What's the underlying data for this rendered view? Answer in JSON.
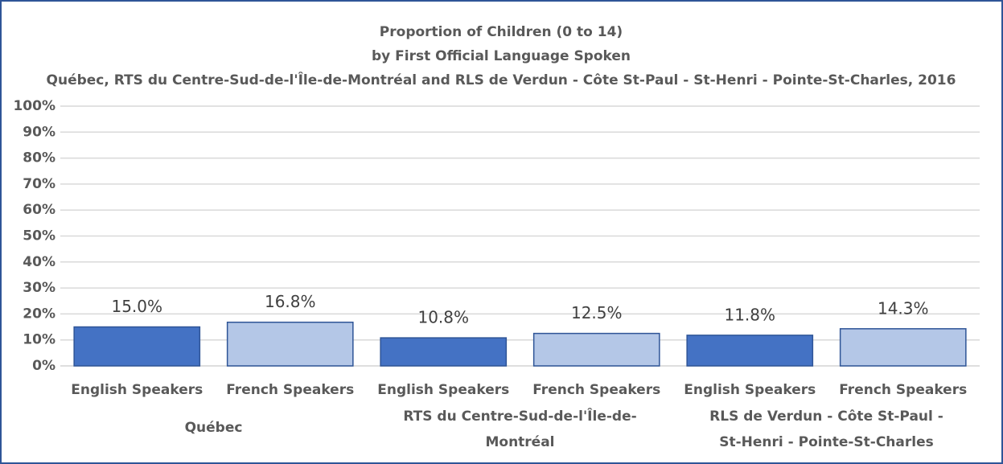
{
  "chart_data": {
    "type": "bar",
    "title": [
      "Proportion of Children (0 to 14)",
      "by First Official Language Spoken",
      "Québec, RTS du Centre-Sud-de-l'Île-de-Montréal and RLS de Verdun - Côte St-Paul - St-Henri - Pointe-St-Charles, 2016"
    ],
    "categories": [
      "English Speakers",
      "French Speakers",
      "English Speakers",
      "French Speakers",
      "English Speakers",
      "French Speakers"
    ],
    "groups": [
      [
        "Québec"
      ],
      [
        "RTS du Centre-Sud-de-l'Île-de-",
        "Montréal"
      ],
      [
        "RLS de Verdun - Côte St-Paul -",
        "St-Henri - Pointe-St-Charles"
      ]
    ],
    "values": [
      15.0,
      16.8,
      10.8,
      12.5,
      11.8,
      14.3
    ],
    "value_labels": [
      "15.0%",
      "16.8%",
      "10.8%",
      "12.5%",
      "11.8%",
      "14.3%"
    ],
    "colors": [
      "#4472c4",
      "#b4c7e7",
      "#4472c4",
      "#b4c7e7",
      "#4472c4",
      "#b4c7e7"
    ],
    "ylim": [
      0,
      100
    ],
    "yticks": [
      {
        "value": 0,
        "label": "0%"
      },
      {
        "value": 10,
        "label": "10%"
      },
      {
        "value": 20,
        "label": "20%"
      },
      {
        "value": 30,
        "label": "30%"
      },
      {
        "value": 40,
        "label": "40%"
      },
      {
        "value": 50,
        "label": "50%"
      },
      {
        "value": 60,
        "label": "60%"
      },
      {
        "value": 70,
        "label": "70%"
      },
      {
        "value": 80,
        "label": "80%"
      },
      {
        "value": 90,
        "label": "90%"
      },
      {
        "value": 100,
        "label": "100%"
      }
    ],
    "grid": true
  }
}
